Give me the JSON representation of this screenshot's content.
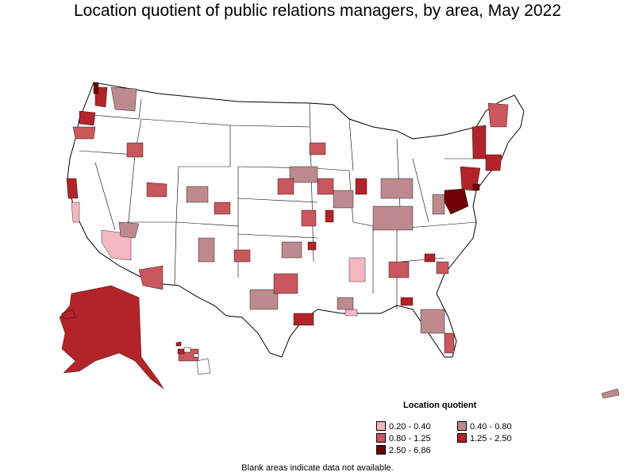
{
  "title": "Location quotient of public relations managers, by area, May 2022",
  "legend": {
    "title": "Location quotient",
    "items": [
      {
        "label": "0.20 - 0.40",
        "color": "#f4b8c1"
      },
      {
        "label": "0.40 - 0.80",
        "color": "#bc8a8f"
      },
      {
        "label": "0.80 - 1.25",
        "color": "#c9575e"
      },
      {
        "label": "1.25 - 2.50",
        "color": "#b3232a"
      },
      {
        "label": "2.50 - 6.86",
        "color": "#6e0006"
      }
    ]
  },
  "note": "Blank areas indicate data not available."
}
